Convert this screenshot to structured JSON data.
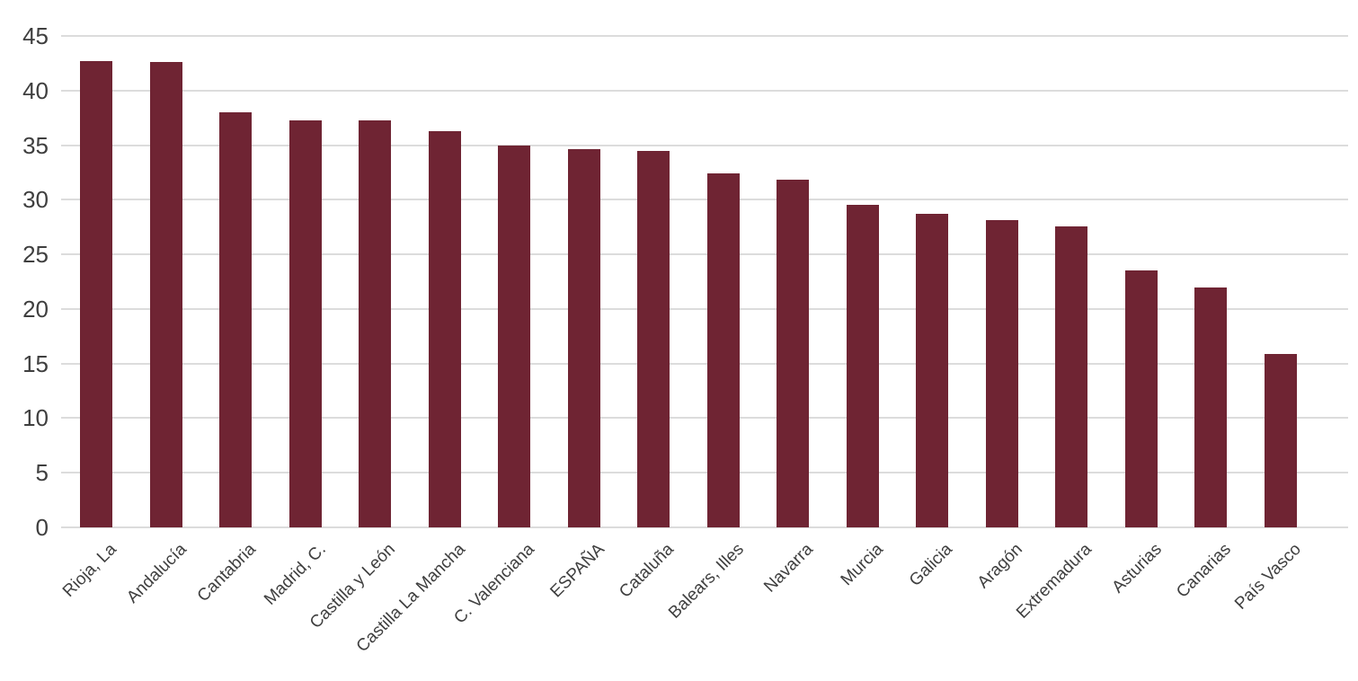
{
  "chart_data": {
    "type": "bar",
    "title": "",
    "xlabel": "",
    "ylabel": "",
    "categories": [
      "Rioja, La",
      "Andalucía",
      "Cantabria",
      "Madrid, C.",
      "Castilla y León",
      "Castilla La Mancha",
      "C. Valenciana",
      "ESPAÑA",
      "Cataluña",
      "Balears, Illes",
      "Navarra",
      "Murcia",
      "Galicia",
      "Aragón",
      "Extremadura",
      "Asturias",
      "Canarias",
      "País Vasco"
    ],
    "values": [
      42.7,
      42.6,
      38.0,
      37.3,
      37.3,
      36.3,
      35.0,
      34.6,
      34.5,
      32.4,
      31.8,
      29.5,
      28.7,
      28.1,
      27.6,
      23.5,
      22.0,
      15.9
    ],
    "ylim": [
      0,
      45
    ],
    "yticks": [
      0,
      5,
      10,
      15,
      20,
      25,
      30,
      35,
      40,
      45
    ],
    "grid": true,
    "legend": "none",
    "bar_color": "#6F2433",
    "gridline_color": "#DCDCDC",
    "tick_label_color": "#3F3F3F"
  }
}
